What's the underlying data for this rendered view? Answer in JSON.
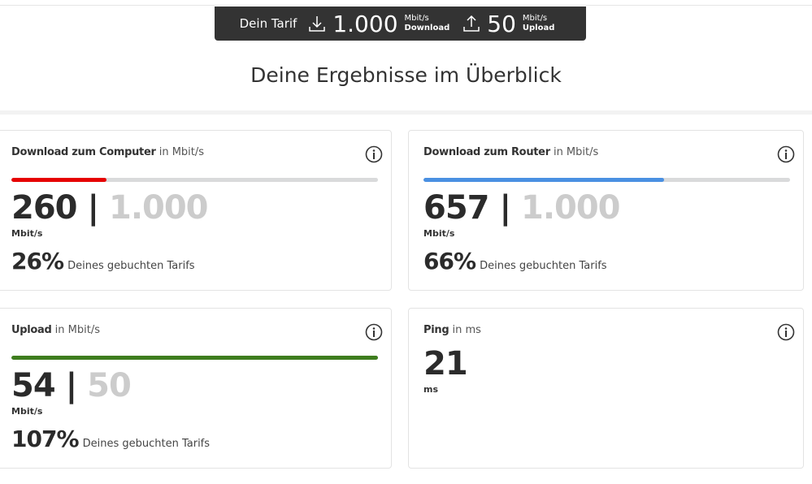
{
  "header": {
    "tariff_label": "Dein Tarif",
    "download": {
      "value": "1.000",
      "unit": "Mbit/s",
      "label": "Download"
    },
    "upload": {
      "value": "50",
      "unit": "Mbit/s",
      "label": "Upload"
    }
  },
  "title": "Deine Ergebnisse im Überblick",
  "cards": [
    {
      "name": "Download zum Computer",
      "unit_note": "in Mbit/s",
      "measured": 260,
      "separator": "|",
      "booked": {
        "value": 1000,
        "label": "1.000"
      },
      "unit": "Mbit/s",
      "percent": {
        "value": 26,
        "label": "26%"
      },
      "percent_note": "Deines gebuchten Tarifs",
      "color": "#e60000"
    },
    {
      "name": "Download zum Router",
      "unit_note": "in Mbit/s",
      "measured": 657,
      "separator": "|",
      "booked": {
        "value": 1000,
        "label": "1.000"
      },
      "unit": "Mbit/s",
      "percent": {
        "value": 66,
        "label": "66%"
      },
      "percent_note": "Deines gebuchten Tarifs",
      "color": "#4a90e2"
    },
    {
      "name": "Upload",
      "unit_note": "in Mbit/s",
      "measured": 54,
      "separator": "|",
      "booked": {
        "value": 50,
        "label": "50"
      },
      "unit": "Mbit/s",
      "percent": {
        "value": 107,
        "label": "107%"
      },
      "percent_note": "Deines gebuchten Tarifs",
      "color": "#3e7d1e"
    },
    {
      "name": "Ping",
      "unit_note": "in ms",
      "measured": 21,
      "unit": "ms"
    }
  ]
}
